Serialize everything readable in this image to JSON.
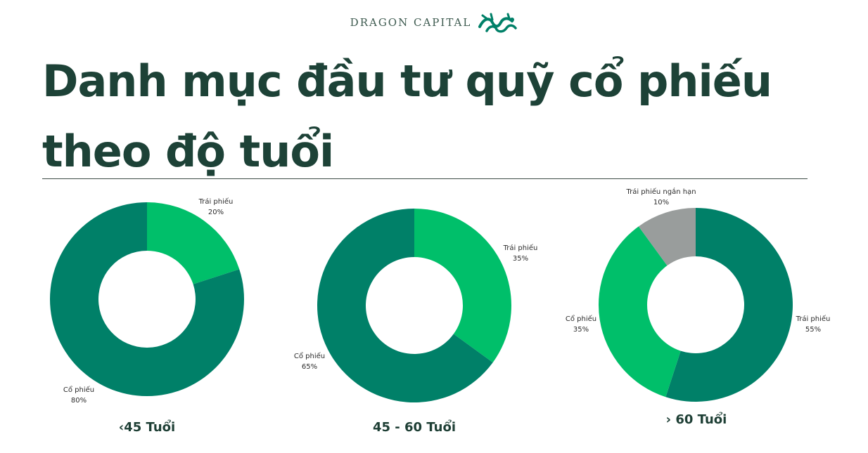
{
  "brand": {
    "name": "DRAGON CAPITAL",
    "logo_icon": "dragon-icon"
  },
  "title": "Danh mục đầu tư quỹ cổ phiếu theo độ tuổi",
  "colors": {
    "dark_green": "#008068",
    "light_green": "#00bf6a",
    "gray": "#999d9c",
    "title": "#1d4237"
  },
  "chart_data": [
    {
      "type": "donut",
      "label": "‹45 Tuổi",
      "slices": [
        {
          "name": "Trái phiếu",
          "value": 20,
          "display": "20%",
          "color": "#00bf6a"
        },
        {
          "name": "Cổ phiếu",
          "value": 80,
          "display": "80%",
          "color": "#008068"
        }
      ]
    },
    {
      "type": "donut",
      "label": "45 - 60 Tuổi",
      "slices": [
        {
          "name": "Trái phiếu",
          "value": 35,
          "display": "35%",
          "color": "#00bf6a"
        },
        {
          "name": "Cổ phiếu",
          "value": 65,
          "display": "65%",
          "color": "#008068"
        }
      ]
    },
    {
      "type": "donut",
      "label": "› 60 Tuổi",
      "slices": [
        {
          "name": "Trái phiếu",
          "value": 55,
          "display": "55%",
          "color": "#008068"
        },
        {
          "name": "Cổ phiếu",
          "value": 35,
          "display": "35%",
          "color": "#00bf6a"
        },
        {
          "name": "Trái phiếu ngắn hạn",
          "value": 10,
          "display": "10%",
          "color": "#999d9c"
        }
      ]
    }
  ]
}
